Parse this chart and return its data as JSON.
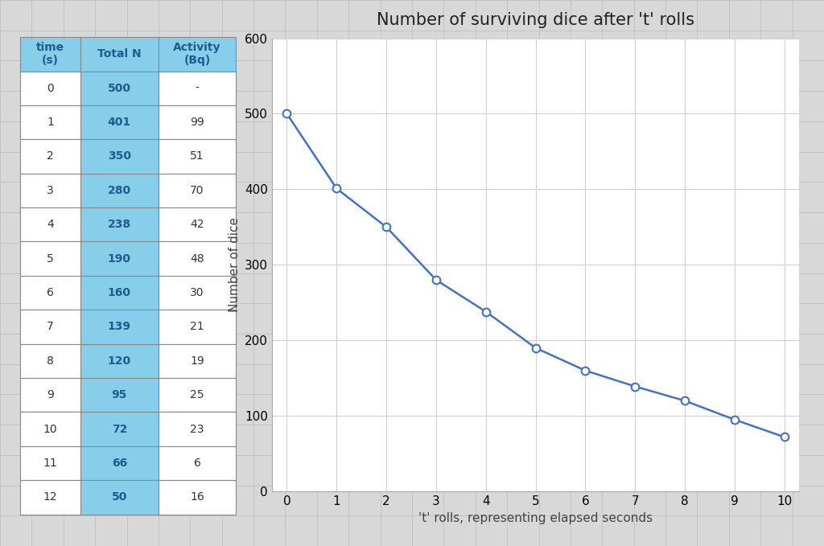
{
  "table": {
    "time": [
      0,
      1,
      2,
      3,
      4,
      5,
      6,
      7,
      8,
      9,
      10,
      11,
      12
    ],
    "total_n": [
      500,
      401,
      350,
      280,
      238,
      190,
      160,
      139,
      120,
      95,
      72,
      66,
      50
    ],
    "activity": [
      "-",
      "99",
      "51",
      "70",
      "42",
      "48",
      "30",
      "21",
      "19",
      "25",
      "23",
      "6",
      "16"
    ],
    "header_bg": "#87CEEB",
    "totaln_col_bg": "#87CEEB",
    "header_text_color": "#1F5C8B",
    "data_text_color": "#1F5C8B",
    "border_color": "#888888",
    "white_bg": "#FFFFFF"
  },
  "chart": {
    "x": [
      0,
      1,
      2,
      3,
      4,
      5,
      6,
      7,
      8,
      9,
      10
    ],
    "y": [
      500,
      401,
      350,
      280,
      238,
      190,
      160,
      139,
      120,
      95,
      72
    ],
    "title": "Number of surviving dice after 't' rolls",
    "xlabel": "'t' rolls, representing elapsed seconds",
    "ylabel": "Number of dice",
    "ylim": [
      0,
      600
    ],
    "yticks": [
      0,
      100,
      200,
      300,
      400,
      500,
      600
    ],
    "xticks": [
      0,
      1,
      2,
      3,
      4,
      5,
      6,
      7,
      8,
      9,
      10
    ],
    "line_color": "#4472C4",
    "marker_face": "#FFFFFF",
    "marker_edge": "#4472C4",
    "grid_color": "#D0D0D0",
    "plot_bg": "#FFFFFF",
    "title_fontsize": 15,
    "label_fontsize": 11,
    "tick_fontsize": 11
  },
  "bg_color": "#D8D8D8",
  "spreadsheet_line_color": "#BBBBBB"
}
